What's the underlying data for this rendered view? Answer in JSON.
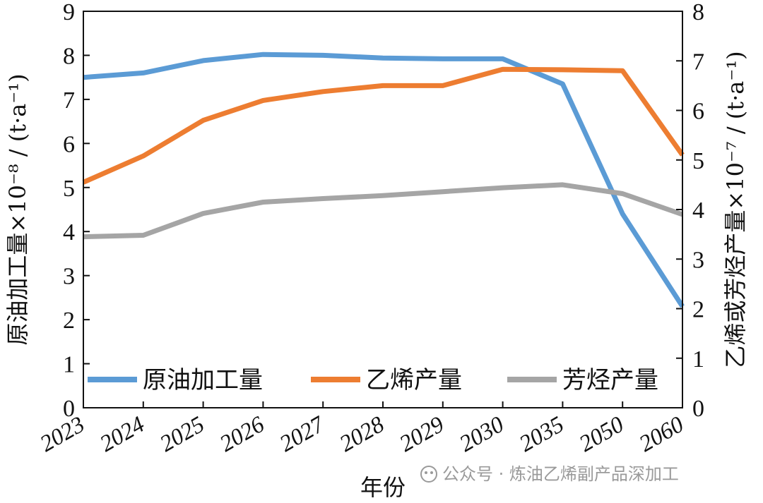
{
  "chart_data": {
    "type": "line",
    "xlabel": "年份",
    "ylabel_left": "原油加工量×10⁻⁸ / (t·a⁻¹)",
    "ylabel_right": "乙烯或芳烃产量×10⁻⁷ / (t·a⁻¹)",
    "categories": [
      "2023",
      "2024",
      "2025",
      "2026",
      "2027",
      "2028",
      "2029",
      "2030",
      "2035",
      "2050",
      "2060"
    ],
    "ylim_left": [
      0,
      9
    ],
    "ylim_right": [
      0,
      8
    ],
    "yticks_left": [
      "0",
      "1",
      "2",
      "3",
      "4",
      "5",
      "6",
      "7",
      "8",
      "9"
    ],
    "yticks_right": [
      "0",
      "1",
      "2",
      "3",
      "4",
      "5",
      "6",
      "7",
      "8"
    ],
    "series": [
      {
        "name": "原油加工量",
        "axis": "left",
        "color": "#5b9bd5",
        "values": [
          7.5,
          7.6,
          7.88,
          8.02,
          8.0,
          7.94,
          7.92,
          7.92,
          7.35,
          4.4,
          2.3
        ]
      },
      {
        "name": "乙烯产量",
        "axis": "right",
        "color": "#ed7d31",
        "values": [
          4.55,
          5.08,
          5.8,
          6.2,
          6.38,
          6.5,
          6.5,
          6.83,
          6.82,
          6.8,
          5.1
        ]
      },
      {
        "name": "芳烃产量",
        "axis": "right",
        "color": "#a5a5a5",
        "values": [
          3.45,
          3.48,
          3.92,
          4.15,
          4.22,
          4.28,
          4.36,
          4.44,
          4.5,
          4.32,
          3.9
        ]
      }
    ]
  },
  "watermark": "公众号 · 炼油乙烯副产品深加工"
}
